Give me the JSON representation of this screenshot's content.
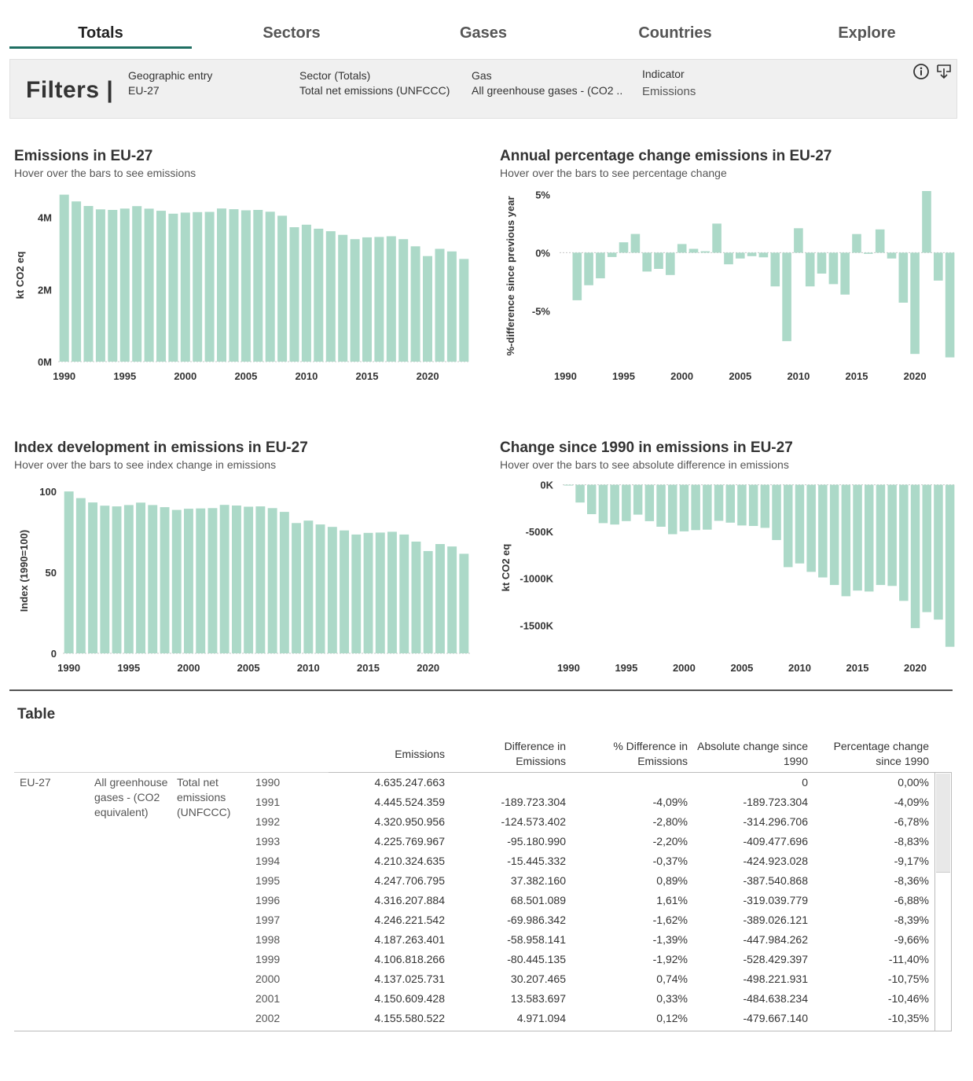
{
  "tabs": [
    {
      "label": "Totals",
      "active": true
    },
    {
      "label": "Sectors"
    },
    {
      "label": "Gases"
    },
    {
      "label": "Countries"
    },
    {
      "label": "Explore"
    }
  ],
  "filters": {
    "title": "Filters |",
    "items": [
      {
        "label": "Geographic entry",
        "value": "EU-27"
      },
      {
        "label": "Sector (Totals)",
        "value": "Total net emissions (UNFCCC)"
      },
      {
        "label": "Gas",
        "value": "All greenhouse gases - (CO2 .."
      },
      {
        "label": "Indicator",
        "value": "Emissions"
      }
    ],
    "icons": [
      "info-icon",
      "download-icon"
    ]
  },
  "colors": {
    "bar": "#acd9c8",
    "accent": "#1f6f62"
  },
  "chart_data": [
    {
      "id": "emissions",
      "type": "bar",
      "title": "Emissions in EU-27",
      "subtitle": "Hover over the bars to see emissions",
      "ylabel": "kt CO2 eq",
      "xlabel": "",
      "x": [
        1990,
        1991,
        1992,
        1993,
        1994,
        1995,
        1996,
        1997,
        1998,
        1999,
        2000,
        2001,
        2002,
        2003,
        2004,
        2005,
        2006,
        2007,
        2008,
        2009,
        2010,
        2011,
        2012,
        2013,
        2014,
        2015,
        2016,
        2017,
        2018,
        2019,
        2020,
        2021,
        2022,
        2023
      ],
      "values": [
        4635247663,
        4445524359,
        4320950956,
        4225769967,
        4210324635,
        4247706795,
        4316207884,
        4246221542,
        4187263401,
        4106818266,
        4137025731,
        4150609428,
        4155580522,
        4250000000,
        4230000000,
        4200000000,
        4210000000,
        4160000000,
        4050000000,
        3730000000,
        3800000000,
        3690000000,
        3620000000,
        3520000000,
        3400000000,
        3450000000,
        3460000000,
        3480000000,
        3400000000,
        3200000000,
        2930000000,
        3130000000,
        3060000000,
        2850000000
      ],
      "ylim": [
        0,
        4800000000
      ],
      "yticks": [
        {
          "v": 0,
          "label": "0M"
        },
        {
          "v": 2000000000,
          "label": "2M"
        },
        {
          "v": 4000000000,
          "label": "4M"
        }
      ],
      "xticks": [
        1990,
        1995,
        2000,
        2005,
        2010,
        2015,
        2020
      ]
    },
    {
      "id": "annual_pct",
      "type": "bar",
      "title": "Annual percentage change emissions in EU-27",
      "subtitle": "Hover over the bars to see percentage change",
      "ylabel": "%-difference since previous year",
      "xlabel": "",
      "x": [
        1990,
        1991,
        1992,
        1993,
        1994,
        1995,
        1996,
        1997,
        1998,
        1999,
        2000,
        2001,
        2002,
        2003,
        2004,
        2005,
        2006,
        2007,
        2008,
        2009,
        2010,
        2011,
        2012,
        2013,
        2014,
        2015,
        2016,
        2017,
        2018,
        2019,
        2020,
        2021,
        2022,
        2023
      ],
      "values": [
        null,
        -4.09,
        -2.8,
        -2.2,
        -0.37,
        0.89,
        1.61,
        -1.62,
        -1.39,
        -1.92,
        0.74,
        0.33,
        0.12,
        2.5,
        -1.0,
        -0.5,
        -0.3,
        -0.4,
        -2.9,
        -7.6,
        2.1,
        -2.9,
        -1.8,
        -2.7,
        -3.6,
        1.6,
        -0.1,
        2.0,
        -0.5,
        -4.3,
        -8.7,
        5.3,
        -2.4,
        -9.0
      ],
      "ylim": [
        -9.5,
        5.5
      ],
      "yticks": [
        {
          "v": 5,
          "label": "5%"
        },
        {
          "v": 0,
          "label": "0%"
        },
        {
          "v": -5,
          "label": "-5%"
        }
      ],
      "xticks": [
        1990,
        1995,
        2000,
        2005,
        2010,
        2015,
        2020
      ]
    },
    {
      "id": "index",
      "type": "bar",
      "title": "Index development in emissions in EU-27",
      "subtitle": "Hover over the bars to see index change in emissions",
      "ylabel": "Index (1990=100)",
      "xlabel": "",
      "x": [
        1990,
        1991,
        1992,
        1993,
        1994,
        1995,
        1996,
        1997,
        1998,
        1999,
        2000,
        2001,
        2002,
        2003,
        2004,
        2005,
        2006,
        2007,
        2008,
        2009,
        2010,
        2011,
        2012,
        2013,
        2014,
        2015,
        2016,
        2017,
        2018,
        2019,
        2020,
        2021,
        2022,
        2023
      ],
      "values": [
        100,
        95.9,
        93.2,
        91.2,
        90.8,
        91.6,
        93.1,
        91.6,
        90.3,
        88.6,
        89.3,
        89.5,
        89.7,
        91.7,
        91.3,
        90.6,
        90.8,
        89.7,
        87.4,
        80.5,
        82.0,
        79.6,
        78.1,
        75.9,
        73.4,
        74.4,
        74.6,
        75.1,
        73.4,
        69.0,
        63.2,
        67.5,
        66.0,
        61.5
      ],
      "ylim": [
        0,
        102
      ],
      "yticks": [
        {
          "v": 0,
          "label": "0"
        },
        {
          "v": 50,
          "label": "50"
        },
        {
          "v": 100,
          "label": "100"
        }
      ],
      "xticks": [
        1990,
        1995,
        2000,
        2005,
        2010,
        2015,
        2020
      ]
    },
    {
      "id": "change_since_1990",
      "type": "bar",
      "title": "Change since 1990 in emissions in EU-27",
      "subtitle": "Hover over the bars to see absolute difference in emissions",
      "ylabel": "kt CO2 eq",
      "xlabel": "",
      "x": [
        1990,
        1991,
        1992,
        1993,
        1994,
        1995,
        1996,
        1997,
        1998,
        1999,
        2000,
        2001,
        2002,
        2003,
        2004,
        2005,
        2006,
        2007,
        2008,
        2009,
        2010,
        2011,
        2012,
        2013,
        2014,
        2015,
        2016,
        2017,
        2018,
        2019,
        2020,
        2021,
        2022,
        2023
      ],
      "values": [
        0,
        -189.7,
        -314.3,
        -409.5,
        -424.9,
        -387.5,
        -319.0,
        -389.0,
        -448.0,
        -528.4,
        -498.2,
        -484.6,
        -479.7,
        -385.0,
        -405.0,
        -435.0,
        -440.0,
        -460.0,
        -590.0,
        -880.0,
        -840.0,
        -930.0,
        -990.0,
        -1070.0,
        -1190.0,
        -1130.0,
        -1140.0,
        -1070.0,
        -1080.0,
        -1240.0,
        -1530.0,
        -1360.0,
        -1440.0,
        -1730.0
      ],
      "ylim": [
        -1800,
        30
      ],
      "yticks": [
        {
          "v": 0,
          "label": "0K"
        },
        {
          "v": -500,
          "label": "-500K"
        },
        {
          "v": -1000,
          "label": "-1000K"
        },
        {
          "v": -1500,
          "label": "-1500K"
        }
      ],
      "xticks": [
        1990,
        1995,
        2000,
        2005,
        2010,
        2015,
        2020
      ]
    }
  ],
  "table": {
    "title": "Table",
    "headers": [
      [
        "Emissions"
      ],
      [
        "Difference in",
        "Emissions"
      ],
      [
        "% Difference in",
        "Emissions"
      ],
      [
        "Absolute change since",
        "1990"
      ],
      [
        "Percentage change",
        "since 1990"
      ]
    ],
    "dims": {
      "geo": "EU-27",
      "gas": [
        "All greenhouse",
        "gases - (CO2",
        "equivalent)"
      ],
      "sector": [
        "Total net",
        "emissions",
        "(UNFCCC)"
      ]
    },
    "rows": [
      {
        "year": "1990",
        "emissions": "4.635.247.663",
        "diff": "",
        "pct": "",
        "abs": "0",
        "pct90": "0,00%"
      },
      {
        "year": "1991",
        "emissions": "4.445.524.359",
        "diff": "-189.723.304",
        "pct": "-4,09%",
        "abs": "-189.723.304",
        "pct90": "-4,09%"
      },
      {
        "year": "1992",
        "emissions": "4.320.950.956",
        "diff": "-124.573.402",
        "pct": "-2,80%",
        "abs": "-314.296.706",
        "pct90": "-6,78%"
      },
      {
        "year": "1993",
        "emissions": "4.225.769.967",
        "diff": "-95.180.990",
        "pct": "-2,20%",
        "abs": "-409.477.696",
        "pct90": "-8,83%"
      },
      {
        "year": "1994",
        "emissions": "4.210.324.635",
        "diff": "-15.445.332",
        "pct": "-0,37%",
        "abs": "-424.923.028",
        "pct90": "-9,17%"
      },
      {
        "year": "1995",
        "emissions": "4.247.706.795",
        "diff": "37.382.160",
        "pct": "0,89%",
        "abs": "-387.540.868",
        "pct90": "-8,36%"
      },
      {
        "year": "1996",
        "emissions": "4.316.207.884",
        "diff": "68.501.089",
        "pct": "1,61%",
        "abs": "-319.039.779",
        "pct90": "-6,88%"
      },
      {
        "year": "1997",
        "emissions": "4.246.221.542",
        "diff": "-69.986.342",
        "pct": "-1,62%",
        "abs": "-389.026.121",
        "pct90": "-8,39%"
      },
      {
        "year": "1998",
        "emissions": "4.187.263.401",
        "diff": "-58.958.141",
        "pct": "-1,39%",
        "abs": "-447.984.262",
        "pct90": "-9,66%"
      },
      {
        "year": "1999",
        "emissions": "4.106.818.266",
        "diff": "-80.445.135",
        "pct": "-1,92%",
        "abs": "-528.429.397",
        "pct90": "-11,40%"
      },
      {
        "year": "2000",
        "emissions": "4.137.025.731",
        "diff": "30.207.465",
        "pct": "0,74%",
        "abs": "-498.221.931",
        "pct90": "-10,75%"
      },
      {
        "year": "2001",
        "emissions": "4.150.609.428",
        "diff": "13.583.697",
        "pct": "0,33%",
        "abs": "-484.638.234",
        "pct90": "-10,46%"
      },
      {
        "year": "2002",
        "emissions": "4.155.580.522",
        "diff": "4.971.094",
        "pct": "0,12%",
        "abs": "-479.667.140",
        "pct90": "-10,35%"
      }
    ]
  }
}
